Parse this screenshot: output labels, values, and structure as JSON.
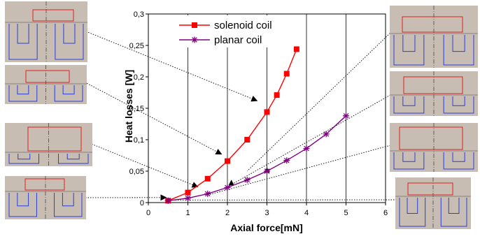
{
  "chart_data": {
    "type": "line",
    "title": "",
    "xlabel": "Axial force[mN]",
    "ylabel": "Heat losses [W]",
    "xlim": [
      0,
      6
    ],
    "ylim": [
      0,
      0.3
    ],
    "xticks": [
      "0",
      "1",
      "2",
      "3",
      "4",
      "5",
      "6"
    ],
    "yticks": [
      "0",
      "0,05",
      "0,1",
      "0,15",
      "0,2",
      "0,25",
      "0,3"
    ],
    "grid": "vertical",
    "legend_position": "top-left",
    "series": [
      {
        "name": "solenoid coil",
        "marker": "square",
        "color": "#ff0000",
        "x": [
          0.5,
          1.0,
          1.5,
          2.0,
          2.5,
          3.0,
          3.25,
          3.5,
          3.75
        ],
        "y": [
          0.003,
          0.016,
          0.038,
          0.066,
          0.1,
          0.144,
          0.171,
          0.205,
          0.244
        ]
      },
      {
        "name": "planar coil",
        "marker": "star",
        "color": "#800080",
        "x": [
          0.5,
          1.0,
          1.5,
          2.0,
          2.5,
          3.0,
          3.5,
          4.0,
          4.5,
          5.0
        ],
        "y": [
          0.003,
          0.007,
          0.014,
          0.024,
          0.036,
          0.05,
          0.067,
          0.086,
          0.109,
          0.138
        ]
      }
    ]
  },
  "insets": {
    "left": [
      {
        "name": "left-inset-1"
      },
      {
        "name": "left-inset-2"
      },
      {
        "name": "left-inset-3"
      },
      {
        "name": "left-inset-4"
      }
    ],
    "right": [
      {
        "name": "right-inset-1"
      },
      {
        "name": "right-inset-2"
      },
      {
        "name": "right-inset-3"
      },
      {
        "name": "right-inset-4"
      }
    ]
  }
}
